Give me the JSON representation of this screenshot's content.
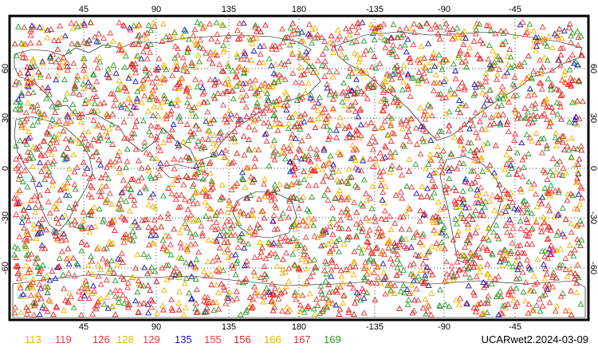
{
  "map": {
    "top_longitude_labels": [
      "45",
      "90",
      "135",
      "180",
      "-135",
      "-90",
      "-45"
    ],
    "bottom_longitude_labels": [
      "45",
      "90",
      "135",
      "180",
      "-135",
      "-90",
      "-45"
    ],
    "latitude_labels": [
      "60",
      "30",
      "0",
      "-30",
      "-60"
    ],
    "marker_symbol": "triangle-outline",
    "colors": {
      "frame": "#000000",
      "grid": "#000000",
      "coastline": "#000000",
      "background": "#ffffff"
    }
  },
  "legend": [
    {
      "label": "113",
      "color": "#f0b400"
    },
    {
      "label": "119",
      "color": "#f03c3c"
    },
    {
      "label": "126",
      "color": "#e03030"
    },
    {
      "label": "128",
      "color": "#f0b400"
    },
    {
      "label": "129",
      "color": "#f03c3c"
    },
    {
      "label": "135",
      "color": "#1414b4"
    },
    {
      "label": "155",
      "color": "#f03c3c"
    },
    {
      "label": "156",
      "color": "#d42020"
    },
    {
      "label": "166",
      "color": "#f0b400"
    },
    {
      "label": "167",
      "color": "#e03030"
    },
    {
      "label": "169",
      "color": "#2a9a2a"
    }
  ],
  "footer": {
    "dataset_label": "UCARwet2.2024-03-09"
  }
}
